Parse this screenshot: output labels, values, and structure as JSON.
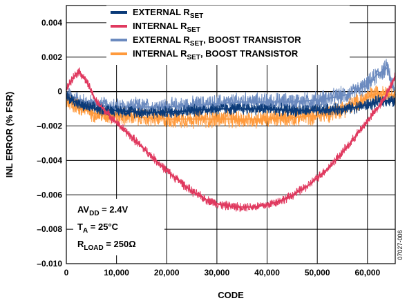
{
  "chart_data": {
    "type": "line",
    "xlabel": "CODE",
    "ylabel": "INL ERROR (% FSR)",
    "xlim": [
      0,
      65535
    ],
    "ylim": [
      -0.01,
      0.005
    ],
    "x_ticks": [
      0,
      10000,
      20000,
      30000,
      40000,
      50000,
      60000
    ],
    "x_tick_labels": [
      "0",
      "10,000",
      "20,000",
      "30,000",
      "40,000",
      "50,000",
      "60,000"
    ],
    "y_ticks": [
      0.004,
      0.002,
      0,
      -0.002,
      -0.004,
      -0.006,
      -0.008,
      -0.01
    ],
    "y_tick_labels": [
      "0.004",
      "0.002",
      "0",
      "–0.002",
      "–0.004",
      "–0.006",
      "–0.008",
      "–0.010"
    ],
    "grid": true,
    "legend_position": "top-center",
    "series": [
      {
        "name": "EXTERNAL R_SET",
        "name_main": "EXTERNAL R",
        "name_sub": "SET",
        "name_suffix": "",
        "color": "#0a3a78",
        "noise": 0.0004,
        "x": [
          0,
          3000,
          6000,
          10000,
          15000,
          20000,
          25000,
          30000,
          35000,
          40000,
          45000,
          50000,
          55000,
          58000,
          61000,
          63000,
          65535
        ],
        "y": [
          -0.0003,
          -0.0008,
          -0.001,
          -0.0011,
          -0.0012,
          -0.0012,
          -0.0011,
          -0.001,
          -0.001,
          -0.001,
          -0.0011,
          -0.0011,
          -0.001,
          -0.0009,
          -0.0007,
          -0.0005,
          -0.0006
        ]
      },
      {
        "name": "INTERNAL R_SET",
        "name_main": "INTERNAL R",
        "name_sub": "SET",
        "name_suffix": "",
        "color": "#e0395f",
        "noise": 0.0003,
        "x": [
          0,
          1000,
          2500,
          4000,
          6000,
          10000,
          15000,
          20000,
          25000,
          28000,
          31000,
          34000,
          37000,
          40000,
          44000,
          48000,
          52000,
          56000,
          60000,
          63000,
          65535
        ],
        "y": [
          0.0001,
          0.0007,
          0.0012,
          0.0006,
          -0.0006,
          -0.0018,
          -0.0032,
          -0.0046,
          -0.0058,
          -0.0063,
          -0.0066,
          -0.0067,
          -0.0067,
          -0.0066,
          -0.0062,
          -0.0055,
          -0.0045,
          -0.0032,
          -0.0017,
          -0.0006,
          0.0009
        ]
      },
      {
        "name": "EXTERNAL R_SET, BOOST TRANSISTOR",
        "name_main": "EXTERNAL R",
        "name_sub": "SET",
        "name_suffix": ", BOOST TRANSISTOR",
        "color": "#6b8abf",
        "noise": 0.0006,
        "x": [
          0,
          3000,
          6000,
          10000,
          15000,
          20000,
          25000,
          30000,
          35000,
          40000,
          45000,
          50000,
          54000,
          57000,
          60000,
          62000,
          64000,
          65535
        ],
        "y": [
          -0.0002,
          -0.0006,
          -0.0008,
          -0.0009,
          -0.0009,
          -0.0009,
          -0.0008,
          -0.0007,
          -0.0006,
          -0.0006,
          -0.0006,
          -0.0005,
          -0.0003,
          -0.0001,
          0.0004,
          0.001,
          0.0014,
          -0.0002
        ]
      },
      {
        "name": "INTERNAL R_SET, BOOST TRANSISTOR",
        "name_main": "INTERNAL R",
        "name_sub": "SET",
        "name_suffix": ", BOOST TRANSISTOR",
        "color": "#ff9a3c",
        "noise": 0.0006,
        "x": [
          0,
          3000,
          6000,
          10000,
          15000,
          20000,
          25000,
          30000,
          35000,
          40000,
          45000,
          50000,
          53000,
          56000,
          59000,
          61000,
          63000,
          65535
        ],
        "y": [
          -0.0005,
          -0.001,
          -0.0013,
          -0.0014,
          -0.0015,
          -0.0016,
          -0.0016,
          -0.0016,
          -0.0016,
          -0.0016,
          -0.0015,
          -0.0014,
          -0.0012,
          -0.0009,
          -0.0005,
          -0.0002,
          0.0,
          -0.0003
        ]
      }
    ],
    "annotations": [
      {
        "main": "AV",
        "sub": "DD",
        "rest": " = 2.4V"
      },
      {
        "main": "T",
        "sub": "A",
        "rest": " = 25°C"
      },
      {
        "main": "R",
        "sub": "LOAD",
        "rest": " = 250Ω"
      }
    ],
    "figure_id": "07027-006"
  }
}
